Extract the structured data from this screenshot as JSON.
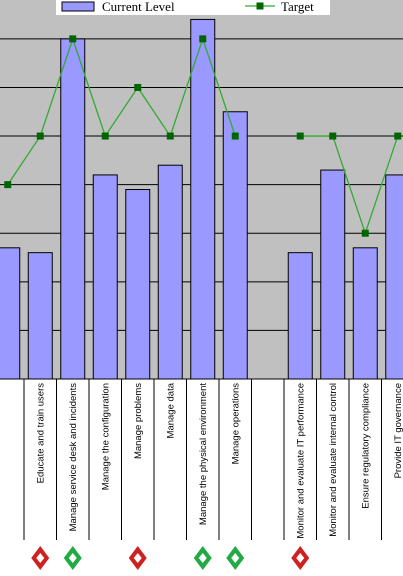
{
  "chart_data": {
    "type": "bar",
    "categories": [
      "",
      "Educate and train users",
      "Manage service desk and incidents",
      "Manage the configuration",
      "Manage problems",
      "Manage data",
      "Manage the physical environment",
      "Manage operations",
      "",
      "Monitor and evaluate IT performance",
      "Monitor and evaluate internal control",
      "Ensure regulatory compliance",
      "Provide IT governance"
    ],
    "series": [
      {
        "name": "Current Level",
        "kind": "bar",
        "color": "#9999ff",
        "values": [
          2.7,
          2.6,
          7.0,
          4.2,
          3.9,
          4.4,
          7.4,
          5.5,
          null,
          2.6,
          4.3,
          2.7,
          4.2
        ]
      },
      {
        "name": "Target",
        "kind": "line",
        "color": "#33aa33",
        "marker_color": "#006600",
        "values": [
          4.0,
          5.0,
          7.0,
          5.0,
          6.0,
          5.0,
          7.0,
          5.0,
          null,
          5.0,
          5.0,
          3.0,
          5.0
        ]
      }
    ],
    "ylim": [
      0,
      7.8
    ],
    "grid": true,
    "plot_background": "#c0c0c0",
    "legend_position": "top",
    "status_markers": [
      null,
      "red",
      "green",
      null,
      "red",
      null,
      "green",
      "green",
      null,
      "red",
      null,
      null,
      null
    ]
  }
}
